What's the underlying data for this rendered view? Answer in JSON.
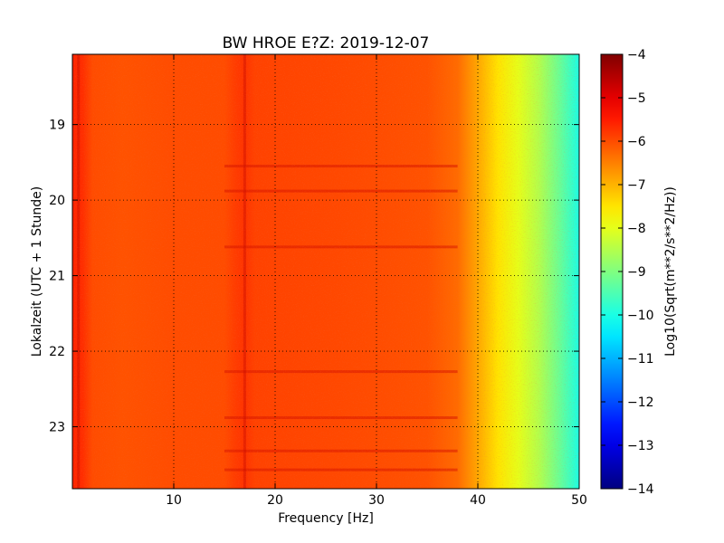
{
  "chart_data": {
    "type": "heatmap",
    "title": "BW HROE E?Z: 2019-12-07",
    "xlabel": "Frequency [Hz]",
    "ylabel": "Lokalzeit (UTC + 1 Stunde)",
    "xlim": [
      0,
      50
    ],
    "ylim": [
      18.07,
      23.82
    ],
    "x_ticks": [
      10,
      20,
      30,
      40,
      50
    ],
    "x_tick_labels": [
      "10",
      "20",
      "30",
      "40",
      "50"
    ],
    "y_ticks": [
      19,
      20,
      21,
      22,
      23
    ],
    "y_tick_labels": [
      "19",
      "20",
      "21",
      "22",
      "23"
    ],
    "y_inverted": true,
    "grid": true,
    "colormap": "jet",
    "colorbar": {
      "label": "Log10(Sqrt(m**2/s**2/Hz))",
      "range": [
        -14,
        -4
      ],
      "ticks": [
        -4,
        -5,
        -6,
        -7,
        -8,
        -9,
        -10,
        -11,
        -12,
        -13,
        -14
      ],
      "tick_labels": [
        "−4",
        "−5",
        "−6",
        "−7",
        "−8",
        "−9",
        "−10",
        "−11",
        "−12",
        "−13",
        "−14"
      ]
    },
    "spectrum_profile": {
      "frequency_hz": [
        0,
        1,
        2,
        5,
        10,
        15,
        16,
        17,
        18,
        25,
        30,
        35,
        38,
        40,
        42,
        44,
        46,
        48,
        50
      ],
      "log10_psd": [
        -5.6,
        -5.7,
        -6.0,
        -6.05,
        -6.0,
        -6.0,
        -5.85,
        -5.75,
        -5.9,
        -5.95,
        -6.0,
        -6.05,
        -6.3,
        -6.9,
        -7.5,
        -8.0,
        -8.5,
        -9.2,
        -10.0
      ]
    },
    "horizontal_bands_hours": [
      19.55,
      19.88,
      20.62,
      22.27,
      22.88,
      23.32,
      23.57
    ]
  }
}
